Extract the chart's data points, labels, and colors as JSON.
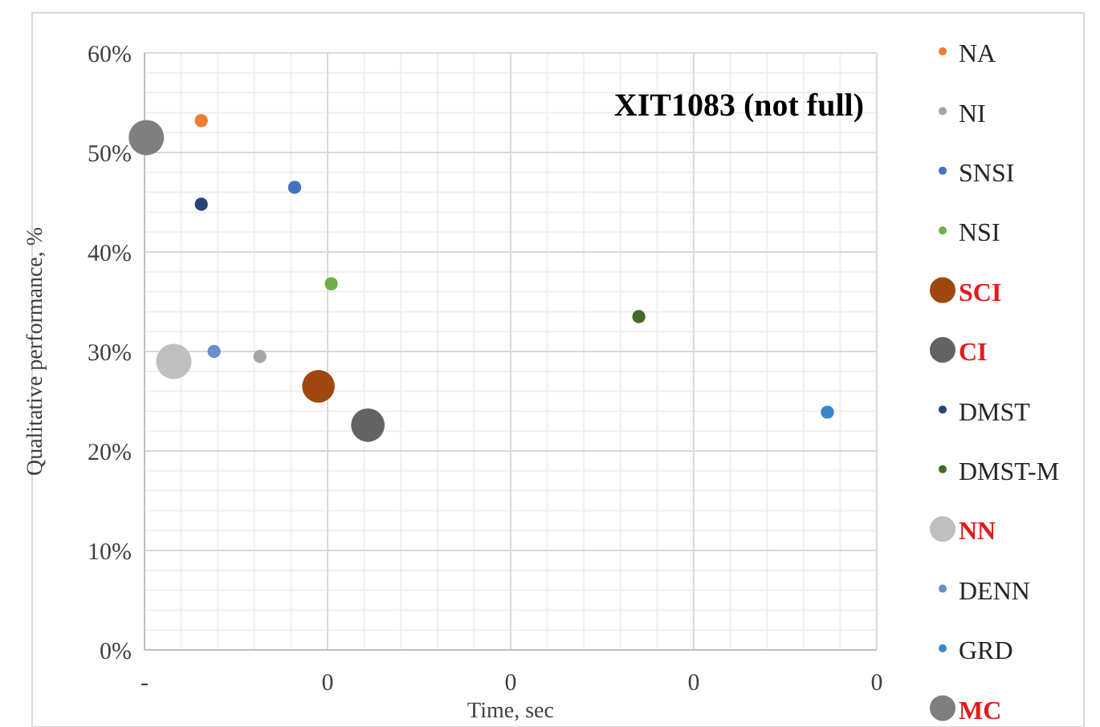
{
  "chart_data": {
    "type": "bubble",
    "title": "XIT1083 (not full)",
    "xlabel": "Time, sec",
    "ylabel": "Qualitative performance, %",
    "xlim": [
      -0.1,
      0.3
    ],
    "xticks": [
      {
        "value": -0.1,
        "label": "-"
      },
      {
        "value": 0,
        "label": "0"
      },
      {
        "value": 0.1,
        "label": "0"
      },
      {
        "value": 0.2,
        "label": "0"
      },
      {
        "value": 0.3,
        "label": "0"
      }
    ],
    "ylim": [
      0,
      60
    ],
    "yticks": [
      {
        "value": 0,
        "label": "0%"
      },
      {
        "value": 10,
        "label": "10%"
      },
      {
        "value": 20,
        "label": "20%"
      },
      {
        "value": 30,
        "label": "30%"
      },
      {
        "value": 40,
        "label": "40%"
      },
      {
        "value": 50,
        "label": "50%"
      },
      {
        "value": 60,
        "label": "60%"
      }
    ],
    "grid": true,
    "legend": "right",
    "series": [
      {
        "name": "NA",
        "color": "#ed7d31",
        "x": [
          -0.069
        ],
        "values": [
          53.2
        ],
        "sizes": [
          0.14
        ]
      },
      {
        "name": "NI",
        "color": "#a5a5a5",
        "x": [
          -0.037
        ],
        "values": [
          29.5
        ],
        "sizes": [
          0.14
        ]
      },
      {
        "name": "SNSI",
        "color": "#4472c4",
        "x": [
          -0.018
        ],
        "values": [
          46.5
        ],
        "sizes": [
          0.14
        ]
      },
      {
        "name": "NSI",
        "color": "#70ad47",
        "x": [
          0.002
        ],
        "values": [
          36.8
        ],
        "sizes": [
          0.14
        ]
      },
      {
        "name": "SCI",
        "color": "#9e480e",
        "x": [
          -0.005
        ],
        "values": [
          26.5
        ],
        "sizes": [
          0.85
        ]
      },
      {
        "name": "CI",
        "color": "#636363",
        "x": [
          0.022
        ],
        "values": [
          22.6
        ],
        "sizes": [
          0.9
        ]
      },
      {
        "name": "DMST",
        "color": "#264478",
        "x": [
          -0.069
        ],
        "values": [
          44.8
        ],
        "sizes": [
          0.14
        ]
      },
      {
        "name": "DMST-M",
        "color": "#43682b",
        "x": [
          0.17
        ],
        "values": [
          33.5
        ],
        "sizes": [
          0.14
        ]
      },
      {
        "name": "NN",
        "color": "#bfbfbf",
        "x": [
          -0.084
        ],
        "values": [
          29.0
        ],
        "sizes": [
          1
        ]
      },
      {
        "name": "DENN",
        "color": "#698ed0",
        "x": [
          -0.062
        ],
        "values": [
          30.0
        ],
        "sizes": [
          0.14
        ]
      },
      {
        "name": "GRD",
        "color": "#3a87c8",
        "x": [
          0.273
        ],
        "values": [
          23.9
        ],
        "sizes": [
          0.14
        ]
      },
      {
        "name": "MC",
        "color": "#7f7f7f",
        "x": [
          -0.099
        ],
        "values": [
          51.5
        ],
        "sizes": [
          1
        ]
      }
    ]
  }
}
